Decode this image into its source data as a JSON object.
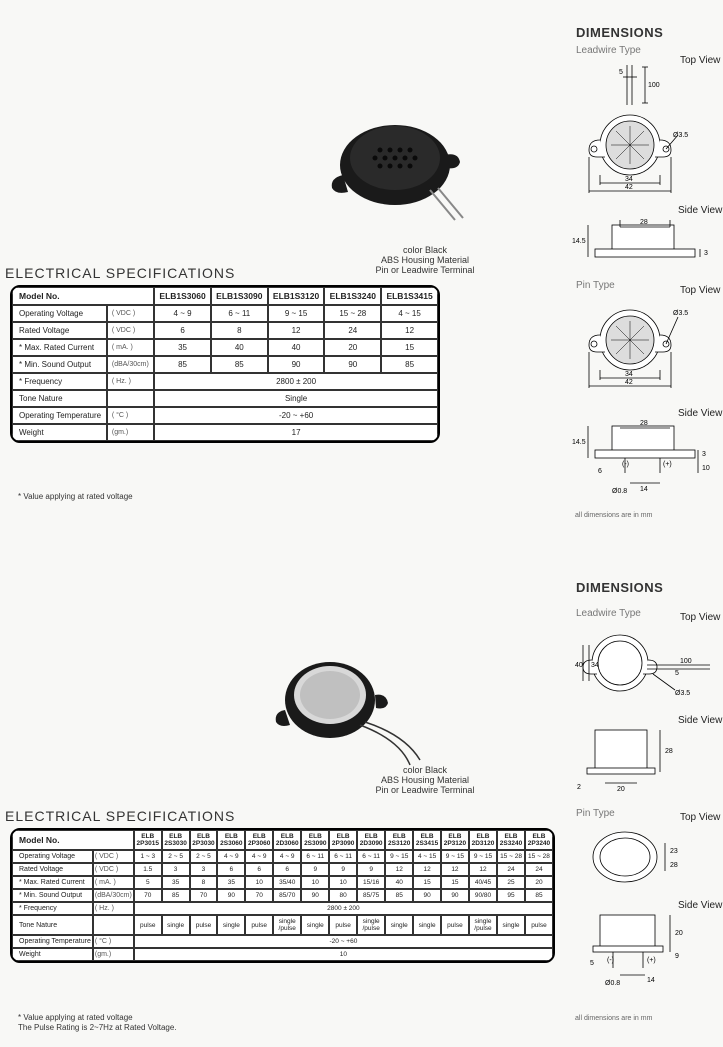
{
  "section1": {
    "dimensions_heading": "DIMENSIONS",
    "leadwire_label": "Leadwire Type",
    "pin_label": "Pin Type",
    "topview_label": "Top View",
    "sideview_label": "Side View",
    "caption_line1": "color Black",
    "caption_line2": "ABS Housing Material",
    "caption_line3": "Pin or Leadwire Terminal",
    "spec_heading": "ELECTRICAL SPECIFICATIONS",
    "footnote": "* Value applying at rated voltage",
    "dim_note": "all dimensions are in mm",
    "table": {
      "header0": "Model No.",
      "cols": [
        "ELB1S3060",
        "ELB1S3090",
        "ELB1S3120",
        "ELB1S3240",
        "ELB1S3415"
      ],
      "rows": [
        {
          "label": "Operating Voltage",
          "unit": "( VDC )",
          "vals": [
            "4 ~ 9",
            "6 ~ 11",
            "9 ~ 15",
            "15 ~ 28",
            "4 ~ 15"
          ]
        },
        {
          "label": "Rated Voltage",
          "unit": "( VDC )",
          "vals": [
            "6",
            "8",
            "12",
            "24",
            "12"
          ]
        },
        {
          "label": "* Max. Rated Current",
          "unit": "( mA. )",
          "vals": [
            "35",
            "40",
            "40",
            "20",
            "15"
          ]
        },
        {
          "label": "* Min. Sound Output",
          "unit": "(dBA/30cm)",
          "vals": [
            "85",
            "85",
            "90",
            "90",
            "85"
          ]
        },
        {
          "label": "* Frequency",
          "unit": "( Hz. )",
          "span": "2800 ± 200"
        },
        {
          "label": "Tone Nature",
          "unit": "",
          "span": "Single"
        },
        {
          "label": "Operating Temperature",
          "unit": "( °C )",
          "span": "-20 ~ +60"
        },
        {
          "label": "Weight",
          "unit": "(gm.)",
          "span": "17"
        }
      ]
    },
    "dims": {
      "w42": "42",
      "w34": "34",
      "d3_5": "Ø3.5",
      "w5": "5",
      "l100": "100",
      "w28": "28",
      "h14_5": "14.5",
      "h3": "3",
      "h10": "10",
      "w6": "6",
      "d0_8": "Ø0.8",
      "w14": "14",
      "plus": "(+)",
      "minus": "(-)"
    }
  },
  "section2": {
    "dimensions_heading": "DIMENSIONS",
    "leadwire_label": "Leadwire Type",
    "pin_label": "Pin Type",
    "topview_label": "Top View",
    "sideview_label": "Side View",
    "caption_line1": "color Black",
    "caption_line2": "ABS Housing Material",
    "caption_line3": "Pin or Leadwire Terminal",
    "spec_heading": "ELECTRICAL SPECIFICATIONS",
    "footnote1": "* Value applying at rated voltage",
    "footnote2": "The Pulse Rating is 2~7Hz at Rated Voltage.",
    "dim_note": "all dimensions are in mm",
    "table": {
      "header0": "Model No.",
      "cols": [
        "ELB 2P3015",
        "ELB 2S3030",
        "ELB 2P3030",
        "ELB 2S3060",
        "ELB 2P3060",
        "ELB 2D3060",
        "ELB 2S3090",
        "ELB 2P3090",
        "ELB 2D3090",
        "ELB 2S3120",
        "ELB 2S3415",
        "ELB 2P3120",
        "ELB 2D3120",
        "ELB 2S3240",
        "ELB 2P3240"
      ],
      "rows": [
        {
          "label": "Operating Voltage",
          "unit": "( VDC )",
          "vals": [
            "1 ~ 3",
            "2 ~ 5",
            "2 ~ 5",
            "4 ~ 9",
            "4 ~ 9",
            "4 ~ 9",
            "6 ~ 11",
            "6 ~ 11",
            "6 ~ 11",
            "9 ~ 15",
            "4 ~ 15",
            "9 ~ 15",
            "9 ~ 15",
            "15 ~ 28",
            "15 ~ 28"
          ]
        },
        {
          "label": "Rated Voltage",
          "unit": "( VDC )",
          "vals": [
            "1.5",
            "3",
            "3",
            "6",
            "6",
            "6",
            "9",
            "9",
            "9",
            "12",
            "12",
            "12",
            "12",
            "24",
            "24"
          ]
        },
        {
          "label": "* Max. Rated Current",
          "unit": "( mA. )",
          "vals": [
            "5",
            "35",
            "8",
            "35",
            "10",
            "35/40",
            "10",
            "10",
            "15/16",
            "40",
            "15",
            "15",
            "40/45",
            "25",
            "20"
          ]
        },
        {
          "label": "* Min. Sound Output",
          "unit": "(dBA/30cm)",
          "vals": [
            "70",
            "85",
            "70",
            "90",
            "70",
            "85/70",
            "90",
            "80",
            "85/75",
            "85",
            "90",
            "90",
            "90/80",
            "95",
            "85"
          ]
        },
        {
          "label": "* Frequency",
          "unit": "( Hz. )",
          "span": "2800 ± 200"
        },
        {
          "label": "Tone Nature",
          "unit": "",
          "vals": [
            "pulse",
            "single",
            "pulse",
            "single",
            "pulse",
            "single /pulse",
            "single",
            "pulse",
            "single /pulse",
            "single",
            "single",
            "pulse",
            "single /pulse",
            "single",
            "pulse"
          ]
        },
        {
          "label": "Operating Temperature",
          "unit": "( °C )",
          "span": "-20 ~ +60"
        },
        {
          "label": "Weight",
          "unit": "(gm.)",
          "span": "10"
        }
      ]
    },
    "dims": {
      "d34": "34",
      "d40": "40",
      "w5": "5",
      "l100": "100",
      "d3_5": "Ø3.5",
      "w20": "20",
      "h28": "28",
      "h2": "2",
      "d23": "23",
      "d28": "28",
      "h20": "20",
      "h9": "9",
      "d0_8": "Ø0.8",
      "w14": "14",
      "plus": "(+)",
      "minus": "(-)",
      "h5": "5"
    }
  }
}
